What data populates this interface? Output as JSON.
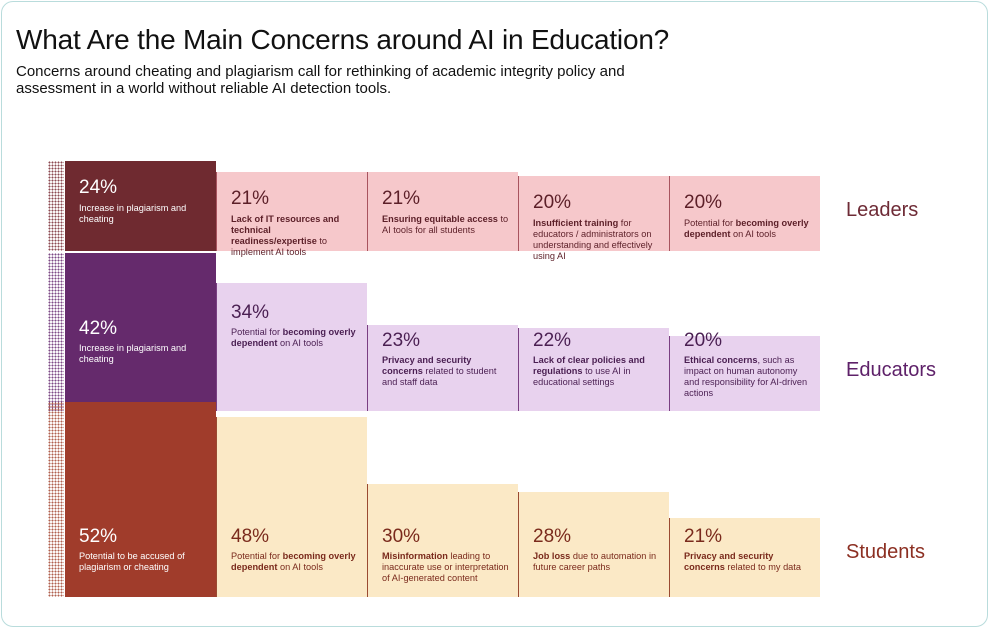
{
  "title": "What Are the Main Concerns around AI in Education?",
  "subtitle": "Concerns around cheating and plagiarism call for rethinking of academic integrity policy and assessment in a world without reliable AI detection tools.",
  "chart_data": {
    "type": "bar",
    "title": "What Are the Main Concerns around AI in Education?",
    "groups": [
      {
        "name": "Leaders",
        "label_color": "#6e2b36",
        "primary_color": "#6f2a30",
        "secondary_color": "#f6c8cb",
        "secondary_border": "#a8545f",
        "secondary_text": "#5c1f28",
        "dots_color": "#8c4a52",
        "items": [
          {
            "value": 24,
            "pct": "24%",
            "parts": [
              {
                "t": "Increase in plagiarism and cheating",
                "b": false
              }
            ]
          },
          {
            "value": 21,
            "pct": "21%",
            "parts": [
              {
                "t": "Lack of IT resources and technical readiness/expertise",
                "b": true
              },
              {
                "t": " to implement AI tools",
                "b": false
              }
            ]
          },
          {
            "value": 21,
            "pct": "21%",
            "parts": [
              {
                "t": "Ensuring equitable access",
                "b": true
              },
              {
                "t": " to AI tools for all students",
                "b": false
              }
            ]
          },
          {
            "value": 20,
            "pct": "20%",
            "parts": [
              {
                "t": "Insufficient training",
                "b": true
              },
              {
                "t": " for educators / administrators on understanding and effectively using AI",
                "b": false
              }
            ]
          },
          {
            "value": 20,
            "pct": "20%",
            "parts": [
              {
                "t": "Potential for ",
                "b": false
              },
              {
                "t": "becoming overly dependent",
                "b": true
              },
              {
                "t": " on AI tools",
                "b": false
              }
            ]
          }
        ]
      },
      {
        "name": "Educators",
        "label_color": "#5e2169",
        "primary_color": "#652a6c",
        "secondary_color": "#e8d2ee",
        "secondary_border": "#7a3f82",
        "secondary_text": "#4a1f52",
        "dots_color": "#7d4a86",
        "items": [
          {
            "value": 42,
            "pct": "42%",
            "parts": [
              {
                "t": "Increase in plagiarism and cheating",
                "b": false
              }
            ]
          },
          {
            "value": 34,
            "pct": "34%",
            "parts": [
              {
                "t": "Potential for ",
                "b": false
              },
              {
                "t": "becoming overly dependent",
                "b": true
              },
              {
                "t": " on AI tools",
                "b": false
              }
            ]
          },
          {
            "value": 23,
            "pct": "23%",
            "parts": [
              {
                "t": "Privacy and security concerns",
                "b": true
              },
              {
                "t": " related to student and staff data",
                "b": false
              }
            ]
          },
          {
            "value": 22,
            "pct": "22%",
            "parts": [
              {
                "t": "Lack of clear policies and regulations",
                "b": true
              },
              {
                "t": " to use AI in educational settings",
                "b": false
              }
            ]
          },
          {
            "value": 20,
            "pct": "20%",
            "parts": [
              {
                "t": "Ethical concerns",
                "b": true
              },
              {
                "t": ", such as impact on human autonomy and responsibility for AI-driven actions",
                "b": false
              }
            ]
          }
        ]
      },
      {
        "name": "Students",
        "label_color": "#8c2f22",
        "primary_color": "#a03c2b",
        "secondary_color": "#fbe9c6",
        "secondary_border": "#9a4a32",
        "secondary_text": "#7a2a1c",
        "dots_color": "#b0604f",
        "items": [
          {
            "value": 52,
            "pct": "52%",
            "parts": [
              {
                "t": "Potential to be accused of plagiarism or cheating",
                "b": false
              }
            ]
          },
          {
            "value": 48,
            "pct": "48%",
            "parts": [
              {
                "t": "Potential for ",
                "b": false
              },
              {
                "t": "becoming overly dependent",
                "b": true
              },
              {
                "t": " on AI tools",
                "b": false
              }
            ]
          },
          {
            "value": 30,
            "pct": "30%",
            "parts": [
              {
                "t": "Misinformation",
                "b": true
              },
              {
                "t": " leading to inaccurate use or interpretation of AI-generated content",
                "b": false
              }
            ]
          },
          {
            "value": 28,
            "pct": "28%",
            "parts": [
              {
                "t": "Job loss",
                "b": true
              },
              {
                "t": " due to automation in future career paths",
                "b": false
              }
            ]
          },
          {
            "value": 21,
            "pct": "21%",
            "parts": [
              {
                "t": "Privacy and security concerns",
                "b": true
              },
              {
                "t": " related to my data",
                "b": false
              }
            ]
          }
        ]
      }
    ]
  }
}
